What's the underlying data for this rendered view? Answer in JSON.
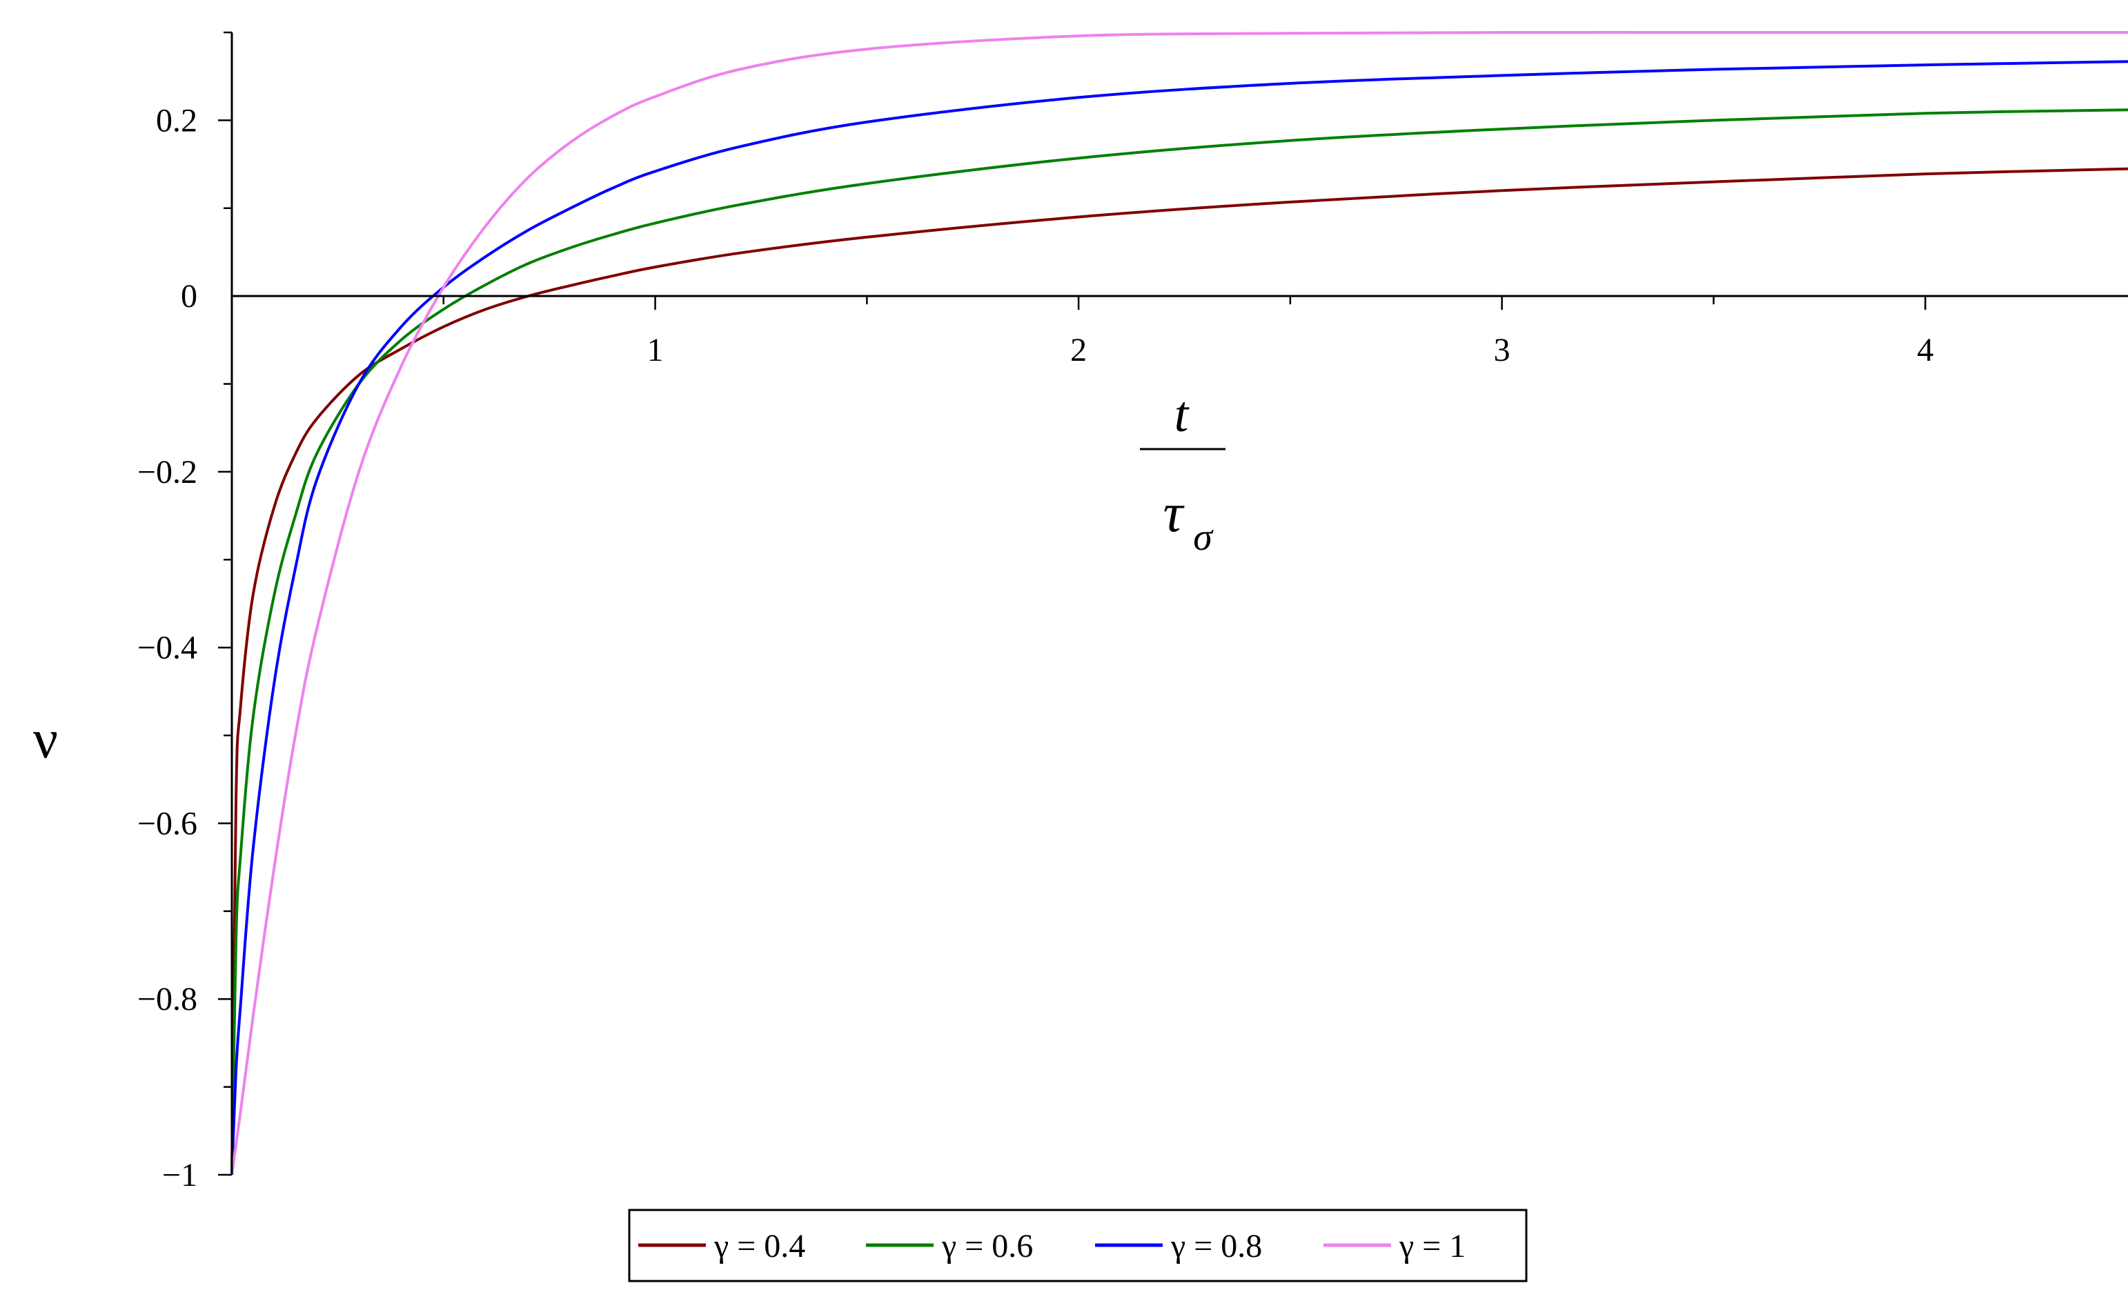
{
  "chart_data": {
    "type": "line",
    "title": "",
    "xlabel": {
      "numerator": "t",
      "denominator": "τ",
      "subscript": "σ"
    },
    "ylabel": "ν",
    "xlim": [
      0,
      4.5
    ],
    "ylim": [
      -1,
      0.3
    ],
    "grid": false,
    "legend_position": "bottom-center",
    "x_ticks": [
      {
        "value": 1,
        "label": "1"
      },
      {
        "value": 2,
        "label": "2"
      },
      {
        "value": 3,
        "label": "3"
      },
      {
        "value": 4,
        "label": "4"
      }
    ],
    "y_ticks": [
      {
        "value": 0.2,
        "label": "0.2"
      },
      {
        "value": 0,
        "label": "0"
      },
      {
        "value": -0.2,
        "label": "−0.2"
      },
      {
        "value": -0.4,
        "label": "−0.4"
      },
      {
        "value": -0.6,
        "label": "−0.6"
      },
      {
        "value": -0.8,
        "label": "−0.8"
      },
      {
        "value": -1,
        "label": "−1"
      }
    ],
    "series": [
      {
        "name": "γ = 0.4",
        "color": "#800000",
        "x": [
          0,
          0.01,
          0.02,
          0.05,
          0.1,
          0.15,
          0.2,
          0.3,
          0.4,
          0.5,
          0.6,
          0.7,
          0.8,
          0.9,
          1.0,
          1.2,
          1.5,
          2.0,
          2.5,
          3.0,
          3.5,
          4.0,
          4.5
        ],
        "y": [
          -1.0,
          -0.57,
          -0.47,
          -0.34,
          -0.24,
          -0.18,
          -0.14,
          -0.09,
          -0.06,
          -0.035,
          -0.015,
          0.0,
          0.012,
          0.023,
          0.033,
          0.049,
          0.067,
          0.09,
          0.107,
          0.12,
          0.13,
          0.139,
          0.145
        ]
      },
      {
        "name": "γ = 0.6",
        "color": "#008000",
        "x": [
          0,
          0.01,
          0.02,
          0.05,
          0.1,
          0.15,
          0.2,
          0.3,
          0.4,
          0.5,
          0.6,
          0.7,
          0.8,
          0.9,
          1.0,
          1.2,
          1.5,
          2.0,
          2.5,
          3.0,
          3.5,
          4.0,
          4.5
        ],
        "y": [
          -1.0,
          -0.73,
          -0.64,
          -0.48,
          -0.34,
          -0.25,
          -0.18,
          -0.1,
          -0.05,
          -0.015,
          0.013,
          0.037,
          0.055,
          0.07,
          0.083,
          0.104,
          0.128,
          0.157,
          0.177,
          0.19,
          0.2,
          0.208,
          0.212
        ]
      },
      {
        "name": "γ = 0.8",
        "color": "#0000ff",
        "x": [
          0,
          0.01,
          0.02,
          0.05,
          0.1,
          0.15,
          0.2,
          0.3,
          0.4,
          0.5,
          0.6,
          0.7,
          0.8,
          0.9,
          1.0,
          1.2,
          1.5,
          2.0,
          2.5,
          3.0,
          3.5,
          4.0,
          4.5
        ],
        "y": [
          -1.0,
          -0.88,
          -0.81,
          -0.63,
          -0.44,
          -0.31,
          -0.21,
          -0.1,
          -0.035,
          0.01,
          0.045,
          0.075,
          0.1,
          0.123,
          0.142,
          0.17,
          0.198,
          0.226,
          0.242,
          0.251,
          0.258,
          0.263,
          0.267
        ]
      },
      {
        "name": "γ = 1",
        "color": "#ee82ee",
        "x": [
          0,
          0.02,
          0.05,
          0.1,
          0.15,
          0.2,
          0.3,
          0.4,
          0.5,
          0.6,
          0.7,
          0.8,
          0.9,
          1.0,
          1.2,
          1.5,
          2.0,
          2.5,
          3.0,
          3.5,
          4.0,
          4.5
        ],
        "y": [
          -1.0,
          -0.93,
          -0.82,
          -0.65,
          -0.5,
          -0.38,
          -0.2,
          -0.08,
          0.01,
          0.08,
          0.135,
          0.175,
          0.205,
          0.227,
          0.258,
          0.281,
          0.296,
          0.299,
          0.3,
          0.3,
          0.3,
          0.3
        ]
      }
    ]
  }
}
